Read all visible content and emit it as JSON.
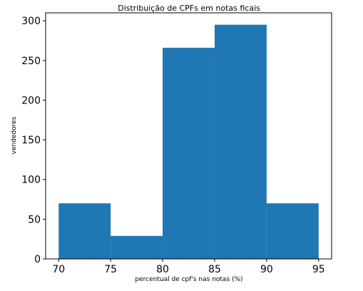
{
  "chart_data": {
    "type": "bar",
    "title": "Distribuição de CPFs em notas ficais",
    "xlabel": "percentual de cpf's nas notas (%)",
    "ylabel": "vendedores",
    "xlim": [
      68.75,
      96.25
    ],
    "ylim": [
      0,
      310
    ],
    "xticks": [
      70,
      75,
      80,
      85,
      90,
      95
    ],
    "yticks": [
      0,
      50,
      100,
      150,
      200,
      250,
      300
    ],
    "bins": [
      {
        "x0": 70,
        "x1": 75,
        "value": 70
      },
      {
        "x0": 75,
        "x1": 80,
        "value": 29
      },
      {
        "x0": 80,
        "x1": 85,
        "value": 266
      },
      {
        "x0": 85,
        "x1": 90,
        "value": 295
      },
      {
        "x0": 90,
        "x1": 95,
        "value": 70
      }
    ],
    "bar_color": "#1f77b4",
    "grid": false
  }
}
